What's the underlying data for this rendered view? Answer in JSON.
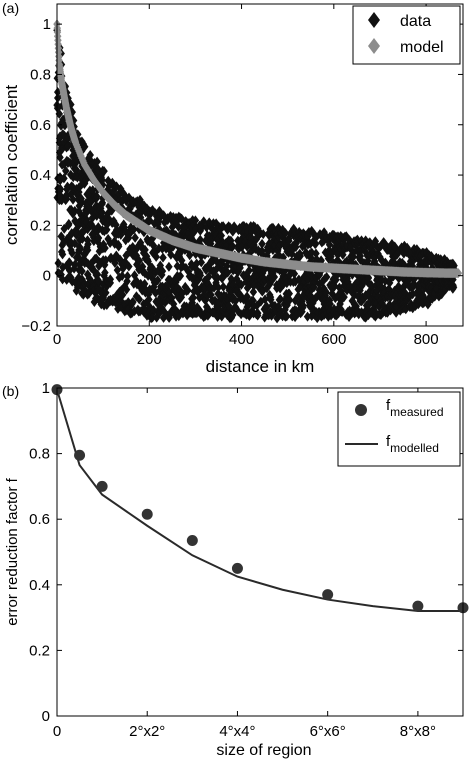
{
  "colors": {
    "data_marker": "#111111",
    "model_marker": "#8c8c8c",
    "measured_marker": "#333333",
    "modelled_line": "#2a2a2a",
    "axes": "#000000"
  },
  "chart_data": [
    {
      "panel_label": "(a)",
      "type": "scatter",
      "title": "",
      "xlabel": "distance in km",
      "ylabel": "correlation coefficient",
      "xlim": [
        0,
        880
      ],
      "ylim": [
        -0.2,
        1.08
      ],
      "xticks": [
        0,
        200,
        400,
        600,
        800
      ],
      "xtick_labels": [
        "0",
        "200",
        "400",
        "600",
        "800"
      ],
      "yticks": [
        -0.2,
        0,
        0.2,
        0.4,
        0.6,
        0.8,
        1
      ],
      "ytick_labels": [
        "−0.2",
        "0",
        "0.2",
        "0.4",
        "0.6",
        "0.8",
        "1"
      ],
      "grid": false,
      "legend_position": "top-right",
      "series": [
        {
          "name": "data",
          "marker": "diamond",
          "description_band": [
            {
              "x": 0,
              "low": 0.0,
              "high": 1.0
            },
            {
              "x": 20,
              "low": -0.03,
              "high": 0.75
            },
            {
              "x": 50,
              "low": -0.08,
              "high": 0.55
            },
            {
              "x": 100,
              "low": -0.12,
              "high": 0.42
            },
            {
              "x": 150,
              "low": -0.15,
              "high": 0.34
            },
            {
              "x": 200,
              "low": -0.17,
              "high": 0.28
            },
            {
              "x": 300,
              "low": -0.17,
              "high": 0.22
            },
            {
              "x": 400,
              "low": -0.17,
              "high": 0.2
            },
            {
              "x": 500,
              "low": -0.17,
              "high": 0.19
            },
            {
              "x": 600,
              "low": -0.17,
              "high": 0.17
            },
            {
              "x": 700,
              "low": -0.17,
              "high": 0.14
            },
            {
              "x": 800,
              "low": -0.12,
              "high": 0.1
            },
            {
              "x": 860,
              "low": -0.05,
              "high": 0.05
            }
          ]
        },
        {
          "name": "model",
          "marker": "diamond",
          "points": [
            [
              0,
              1.0
            ],
            [
              5,
              0.84
            ],
            [
              10,
              0.77
            ],
            [
              20,
              0.67
            ],
            [
              30,
              0.59
            ],
            [
              40,
              0.53
            ],
            [
              60,
              0.44
            ],
            [
              80,
              0.38
            ],
            [
              100,
              0.33
            ],
            [
              125,
              0.28
            ],
            [
              150,
              0.24
            ],
            [
              175,
              0.21
            ],
            [
              200,
              0.18
            ],
            [
              250,
              0.14
            ],
            [
              300,
              0.11
            ],
            [
              350,
              0.09
            ],
            [
              400,
              0.07
            ],
            [
              450,
              0.055
            ],
            [
              500,
              0.045
            ],
            [
              550,
              0.035
            ],
            [
              600,
              0.03
            ],
            [
              650,
              0.025
            ],
            [
              700,
              0.02
            ],
            [
              750,
              0.015
            ],
            [
              800,
              0.012
            ],
            [
              850,
              0.01
            ],
            [
              870,
              0.01
            ]
          ]
        }
      ]
    },
    {
      "panel_label": "(b)",
      "type": "line",
      "title": "",
      "xlabel": "size of region",
      "ylabel": "error reduction factor f",
      "xlim": [
        0,
        9
      ],
      "ylim": [
        0,
        1
      ],
      "xticks": [
        0,
        2,
        4,
        6,
        8
      ],
      "xtick_labels": [
        "0",
        "2°x2°",
        "4°x4°",
        "6°x6°",
        "8°x8°"
      ],
      "yticks": [
        0,
        0.2,
        0.4,
        0.6,
        0.8,
        1
      ],
      "ytick_labels": [
        "0",
        "0.2",
        "0.4",
        "0.6",
        "0.8",
        "1"
      ],
      "grid": false,
      "legend_position": "top-right",
      "series": [
        {
          "name": "f_measured",
          "legend_base": "f",
          "legend_sub": "measured",
          "marker": "circle",
          "x": [
            0,
            0.5,
            1,
            2,
            3,
            4,
            6,
            8,
            9
          ],
          "values": [
            0.995,
            0.795,
            0.7,
            0.615,
            0.535,
            0.45,
            0.37,
            0.335,
            0.33
          ]
        },
        {
          "name": "f_modelled",
          "legend_base": "f",
          "legend_sub": "modelled",
          "marker": "line",
          "x": [
            0,
            0.5,
            1,
            2,
            3,
            4,
            5,
            6,
            7,
            8,
            9
          ],
          "values": [
            0.995,
            0.765,
            0.675,
            0.58,
            0.49,
            0.425,
            0.385,
            0.355,
            0.335,
            0.32,
            0.32
          ]
        }
      ]
    }
  ]
}
